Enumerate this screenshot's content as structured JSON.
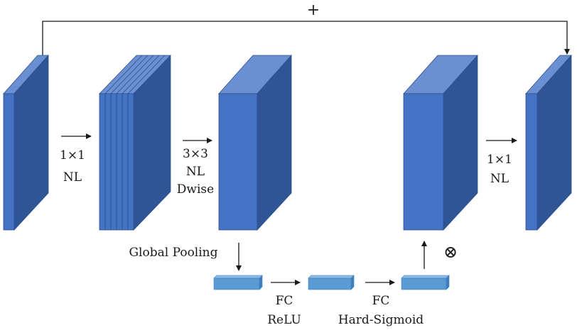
{
  "diagram": {
    "residual_label": "+",
    "multiply_symbol": "⊗",
    "labels": {
      "expand_line1": "1×1",
      "expand_line2": "NL",
      "dwise_line1": "3×3",
      "dwise_line2": "NL",
      "dwise_line3": "Dwise",
      "project_line1": "1×1",
      "project_line2": "NL",
      "global_pooling": "Global Pooling",
      "fc1_line1": "FC",
      "fc1_line2": "ReLU",
      "fc2_line1": "FC",
      "fc2_line2": "Hard-Sigmoid"
    },
    "colors": {
      "block_front": "#4472c4",
      "block_side": "#2f5597",
      "block_top": "#6a8fd2",
      "block_edge": "#2c4f8c",
      "se_front": "#5b9bd5",
      "se_top": "#8dbbe6",
      "se_side": "#3f7fbf",
      "arrow": "#1a1a1a"
    }
  }
}
